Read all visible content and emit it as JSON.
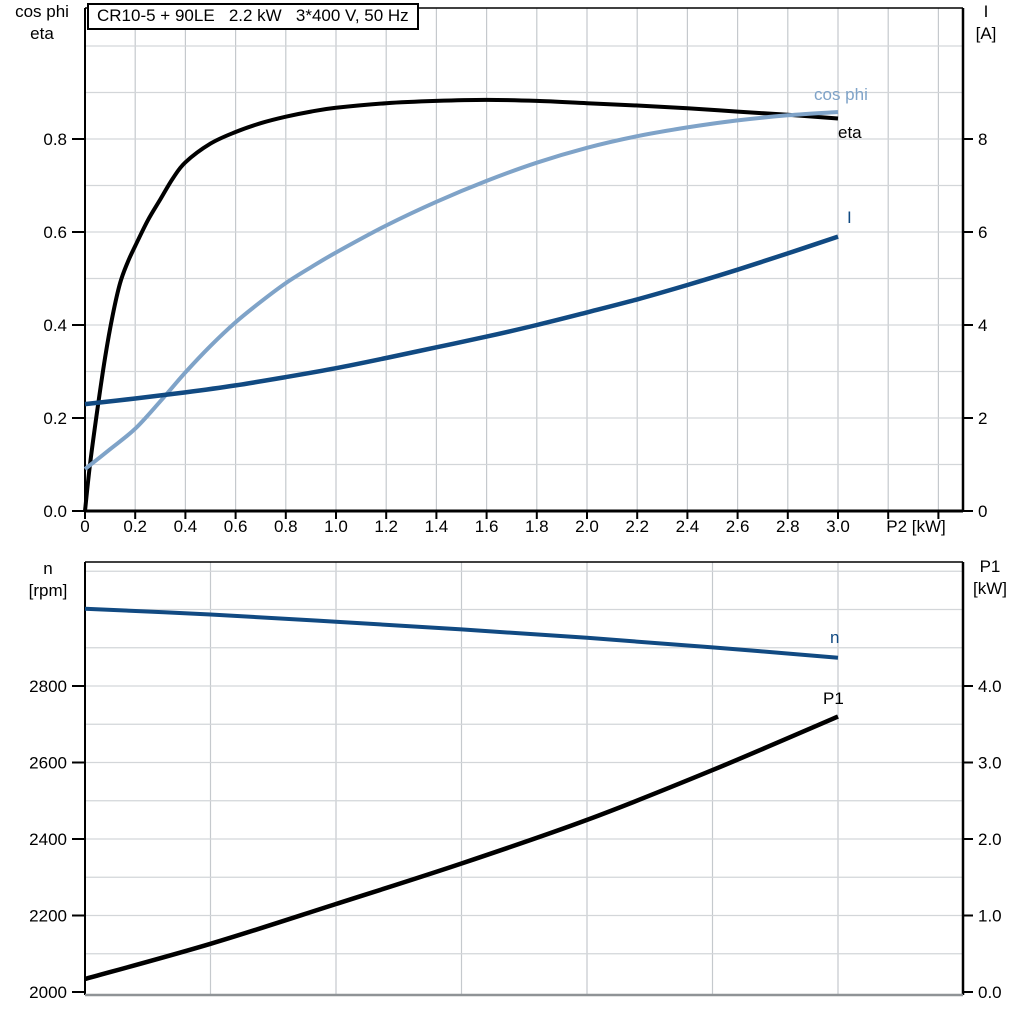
{
  "colors": {
    "axis": "#000000",
    "grid_vertical": "#c5c9cd",
    "grid_horizontal": "#d3d6d9",
    "bottom_frame_gray": "#8f9396",
    "dark_blue": "#114a82",
    "light_blue": "#7fa3c8",
    "black": "#000000",
    "background": "#ffffff"
  },
  "chart_data": [
    {
      "type": "line",
      "title": "CR10-5 + 90LE   2.2 kW   3*400 V, 50 Hz",
      "x_axis": {
        "label": "P2 [kW]",
        "min": 0,
        "max": 3.5,
        "gridlines": [
          0.2,
          0.4,
          0.6,
          0.8,
          1.0,
          1.2,
          1.4,
          1.6,
          1.8,
          2.0,
          2.2,
          2.4,
          2.6,
          2.8,
          3.0,
          3.2,
          3.4
        ],
        "tick_marks": [
          0,
          0.2,
          0.4,
          0.6,
          0.8,
          1.0,
          1.2,
          1.4,
          1.6,
          1.8,
          2.0,
          2.2,
          2.4,
          2.6,
          2.8,
          3.0,
          3.2,
          3.4
        ],
        "ticks": [
          {
            "value": 0,
            "label": "0"
          },
          {
            "value": 0.2,
            "label": "0.2"
          },
          {
            "value": 0.4,
            "label": "0.4"
          },
          {
            "value": 0.6,
            "label": "0.6"
          },
          {
            "value": 0.8,
            "label": "0.8"
          },
          {
            "value": 1.0,
            "label": "1.0"
          },
          {
            "value": 1.2,
            "label": "1.2"
          },
          {
            "value": 1.4,
            "label": "1.4"
          },
          {
            "value": 1.6,
            "label": "1.6"
          },
          {
            "value": 1.8,
            "label": "1.8"
          },
          {
            "value": 2.0,
            "label": "2.0"
          },
          {
            "value": 2.2,
            "label": "2.2"
          },
          {
            "value": 2.4,
            "label": "2.4"
          },
          {
            "value": 2.6,
            "label": "2.6"
          },
          {
            "value": 2.8,
            "label": "2.8"
          },
          {
            "value": 3.0,
            "label": "3.0"
          }
        ]
      },
      "y_left": {
        "title_line1": "cos phi",
        "title_line2": "eta",
        "min": 0,
        "max": 1.08,
        "gridlines": [
          0.1,
          0.2,
          0.3,
          0.4,
          0.5,
          0.6,
          0.7,
          0.8,
          0.9,
          1.0
        ],
        "ticks": [
          {
            "value": 0.0,
            "label": "0.0"
          },
          {
            "value": 0.2,
            "label": "0.2"
          },
          {
            "value": 0.4,
            "label": "0.4"
          },
          {
            "value": 0.6,
            "label": "0.6"
          },
          {
            "value": 0.8,
            "label": "0.8"
          }
        ]
      },
      "y_right": {
        "title_line1": "I",
        "title_line2": "[A]",
        "min": 0,
        "max": 10.8,
        "ticks": [
          {
            "value": 0,
            "label": "0"
          },
          {
            "value": 2,
            "label": "2"
          },
          {
            "value": 4,
            "label": "4"
          },
          {
            "value": 6,
            "label": "6"
          },
          {
            "value": 8,
            "label": "8"
          }
        ]
      },
      "series": [
        {
          "name": "eta",
          "label": "eta",
          "axis": "left",
          "color": "#000000",
          "width": 4,
          "points": [
            [
              0,
              0
            ],
            [
              0.02,
              0.1
            ],
            [
              0.05,
              0.22
            ],
            [
              0.08,
              0.33
            ],
            [
              0.11,
              0.42
            ],
            [
              0.14,
              0.49
            ],
            [
              0.17,
              0.535
            ],
            [
              0.2,
              0.57
            ],
            [
              0.25,
              0.625
            ],
            [
              0.3,
              0.67
            ],
            [
              0.35,
              0.715
            ],
            [
              0.4,
              0.75
            ],
            [
              0.5,
              0.79
            ],
            [
              0.6,
              0.815
            ],
            [
              0.7,
              0.834
            ],
            [
              0.8,
              0.848
            ],
            [
              0.9,
              0.859
            ],
            [
              1.0,
              0.867
            ],
            [
              1.2,
              0.877
            ],
            [
              1.4,
              0.882
            ],
            [
              1.6,
              0.884
            ],
            [
              1.8,
              0.882
            ],
            [
              2.0,
              0.877
            ],
            [
              2.2,
              0.872
            ],
            [
              2.4,
              0.866
            ],
            [
              2.6,
              0.859
            ],
            [
              2.8,
              0.852
            ],
            [
              3.0,
              0.844
            ]
          ]
        },
        {
          "name": "cos phi",
          "label": "cos phi",
          "axis": "left",
          "color": "#7fa3c8",
          "width": 4,
          "points": [
            [
              0,
              0.09
            ],
            [
              0.1,
              0.133
            ],
            [
              0.2,
              0.177
            ],
            [
              0.3,
              0.236
            ],
            [
              0.4,
              0.298
            ],
            [
              0.5,
              0.355
            ],
            [
              0.6,
              0.406
            ],
            [
              0.7,
              0.45
            ],
            [
              0.8,
              0.49
            ],
            [
              0.9,
              0.524
            ],
            [
              1.0,
              0.556
            ],
            [
              1.2,
              0.614
            ],
            [
              1.4,
              0.665
            ],
            [
              1.6,
              0.71
            ],
            [
              1.8,
              0.749
            ],
            [
              2.0,
              0.781
            ],
            [
              2.2,
              0.806
            ],
            [
              2.4,
              0.825
            ],
            [
              2.6,
              0.84
            ],
            [
              2.8,
              0.851
            ],
            [
              3.0,
              0.858
            ]
          ]
        },
        {
          "name": "I",
          "label": "I",
          "axis": "right",
          "color": "#114a82",
          "width": 4.5,
          "points": [
            [
              0,
              2.3
            ],
            [
              0.2,
              2.42
            ],
            [
              0.4,
              2.55
            ],
            [
              0.6,
              2.7
            ],
            [
              0.8,
              2.88
            ],
            [
              1.0,
              3.07
            ],
            [
              1.2,
              3.29
            ],
            [
              1.4,
              3.52
            ],
            [
              1.6,
              3.75
            ],
            [
              1.8,
              4.0
            ],
            [
              2.0,
              4.27
            ],
            [
              2.2,
              4.55
            ],
            [
              2.4,
              4.86
            ],
            [
              2.6,
              5.19
            ],
            [
              2.8,
              5.54
            ],
            [
              3.0,
              5.9
            ]
          ]
        }
      ]
    },
    {
      "type": "line",
      "title": "",
      "x_axis": {
        "label": "",
        "min": 0,
        "max": 3.5,
        "gridlines": [
          0.5,
          1.0,
          1.5,
          2.0,
          2.5,
          3.0
        ],
        "tick_marks": [],
        "ticks": []
      },
      "y_left": {
        "title_line1": "n",
        "title_line2": "[rpm]",
        "min": 2000,
        "max": 3120,
        "gridlines": [
          2100,
          2200,
          2300,
          2400,
          2500,
          2600,
          2700,
          2800,
          2900,
          3000,
          3100
        ],
        "ticks": [
          {
            "value": 2000,
            "label": "2000"
          },
          {
            "value": 2200,
            "label": "2200"
          },
          {
            "value": 2400,
            "label": "2400"
          },
          {
            "value": 2600,
            "label": "2600"
          },
          {
            "value": 2800,
            "label": "2800"
          }
        ]
      },
      "y_right": {
        "title_line1": "P1",
        "title_line2": "[kW]",
        "min": 0,
        "max": 5.6,
        "ticks": [
          {
            "value": 0,
            "label": "0.0"
          },
          {
            "value": 1,
            "label": "1.0"
          },
          {
            "value": 2,
            "label": "2.0"
          },
          {
            "value": 3,
            "label": "3.0"
          },
          {
            "value": 4,
            "label": "4.0"
          }
        ]
      },
      "series": [
        {
          "name": "n",
          "label": "n",
          "axis": "left",
          "color": "#114a82",
          "width": 4,
          "points": [
            [
              0,
              3002
            ],
            [
              0.5,
              2987
            ],
            [
              1.0,
              2968
            ],
            [
              1.5,
              2948
            ],
            [
              2.0,
              2926
            ],
            [
              2.5,
              2901
            ],
            [
              3.0,
              2874
            ]
          ]
        },
        {
          "name": "P1",
          "label": "P1",
          "axis": "right",
          "color": "#000000",
          "width": 4.5,
          "points": [
            [
              0,
              0.17
            ],
            [
              0.5,
              0.63
            ],
            [
              1.0,
              1.15
            ],
            [
              1.5,
              1.68
            ],
            [
              2.0,
              2.25
            ],
            [
              2.5,
              2.9
            ],
            [
              3.0,
              3.6
            ]
          ]
        }
      ]
    }
  ]
}
